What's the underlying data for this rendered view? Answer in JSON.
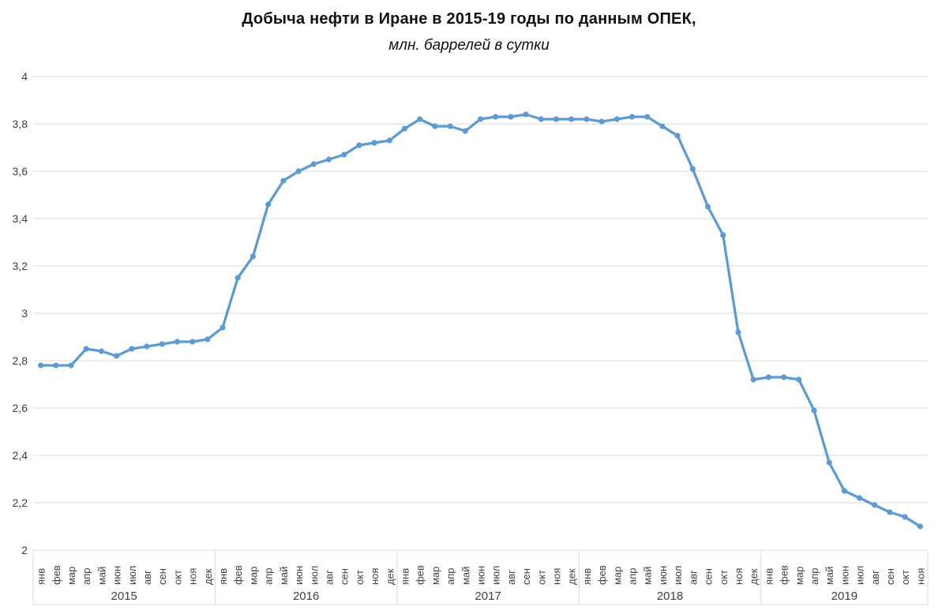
{
  "title": "Добыча нефти в Иране в 2015-19 годы по данным ОПЕК,",
  "subtitle": "млн. баррелей в сутки",
  "chart_data": {
    "type": "line",
    "title": "Добыча нефти в Иране в 2015-19 годы по данным ОПЕК,",
    "subtitle": "млн. баррелей в сутки",
    "ylabel": "млн. баррелей в сутки",
    "ylim": [
      2,
      4
    ],
    "ytick_step": 0.2,
    "ytick_labels": [
      "2",
      "2,2",
      "2,4",
      "2,6",
      "2,8",
      "3",
      "3,2",
      "3,4",
      "3,6",
      "3,8",
      "4"
    ],
    "grid": true,
    "legend": "none",
    "line_color": "#5B9BD5",
    "grid_color": "#D9D9D9",
    "axis_text_color": "#404040",
    "months": [
      "янв",
      "фев",
      "мар",
      "апр",
      "май",
      "июн",
      "июл",
      "авг",
      "сен",
      "окт",
      "ноя",
      "дек"
    ],
    "series": [
      {
        "year": "2015",
        "values": [
          2.78,
          2.78,
          2.78,
          2.85,
          2.84,
          2.82,
          2.85,
          2.86,
          2.87,
          2.88,
          2.88,
          2.89
        ]
      },
      {
        "year": "2016",
        "values": [
          2.94,
          3.15,
          3.24,
          3.46,
          3.56,
          3.6,
          3.63,
          3.65,
          3.67,
          3.71,
          3.72,
          3.73
        ]
      },
      {
        "year": "2017",
        "values": [
          3.78,
          3.82,
          3.79,
          3.79,
          3.77,
          3.82,
          3.83,
          3.83,
          3.84,
          3.82,
          3.82,
          3.82
        ]
      },
      {
        "year": "2018",
        "values": [
          3.82,
          3.81,
          3.82,
          3.83,
          3.83,
          3.79,
          3.75,
          3.61,
          3.45,
          3.33,
          2.92,
          2.72
        ]
      },
      {
        "year": "2019",
        "values": [
          2.73,
          2.73,
          2.72,
          2.59,
          2.37,
          2.25,
          2.22,
          2.19,
          2.16,
          2.14,
          2.1
        ]
      }
    ]
  }
}
